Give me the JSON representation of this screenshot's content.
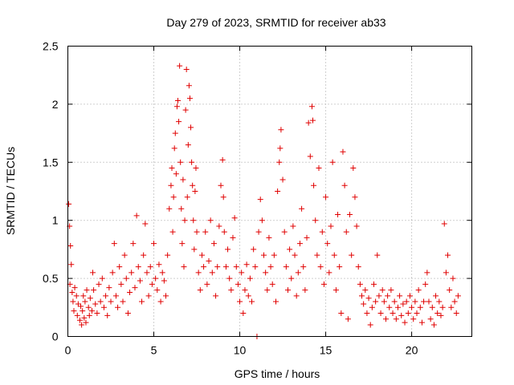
{
  "chart_data": {
    "type": "scatter",
    "title": "Day 279 of 2023, SRMTID for receiver ab33",
    "xlabel": "GPS time / hours",
    "ylabel": "SRMTID / TECUs",
    "xlim": [
      0,
      23.5
    ],
    "ylim": [
      0,
      2.5
    ],
    "xticks": [
      0,
      5,
      10,
      15,
      20
    ],
    "xtick_labels": [
      "0",
      "5",
      "10",
      "15",
      "20"
    ],
    "yticks": [
      0,
      0.5,
      1,
      1.5,
      2,
      2.5
    ],
    "ytick_labels": [
      "0",
      "0.5",
      "1",
      "1.5",
      "2",
      "2.5"
    ],
    "grid": true,
    "marker": "+",
    "color": "#e00000",
    "series": [
      {
        "name": "SRMTID",
        "points": [
          [
            0.05,
            1.14
          ],
          [
            0.1,
            0.95
          ],
          [
            0.15,
            0.78
          ],
          [
            0.2,
            0.62
          ],
          [
            0.12,
            0.45
          ],
          [
            0.25,
            0.38
          ],
          [
            0.3,
            0.3
          ],
          [
            0.35,
            0.22
          ],
          [
            0.4,
            0.42
          ],
          [
            0.5,
            0.35
          ],
          [
            0.55,
            0.18
          ],
          [
            0.6,
            0.28
          ],
          [
            0.7,
            0.14
          ],
          [
            0.75,
            0.26
          ],
          [
            0.8,
            0.1
          ],
          [
            0.85,
            0.22
          ],
          [
            0.9,
            0.35
          ],
          [
            0.95,
            0.16
          ],
          [
            1.0,
            0.3
          ],
          [
            1.05,
            0.12
          ],
          [
            1.1,
            0.4
          ],
          [
            1.2,
            0.25
          ],
          [
            1.25,
            0.18
          ],
          [
            1.3,
            0.33
          ],
          [
            1.4,
            0.22
          ],
          [
            1.45,
            0.55
          ],
          [
            1.5,
            0.4
          ],
          [
            1.6,
            0.28
          ],
          [
            1.7,
            0.2
          ],
          [
            1.8,
            0.45
          ],
          [
            1.9,
            0.3
          ],
          [
            2.0,
            0.5
          ],
          [
            2.1,
            0.25
          ],
          [
            2.2,
            0.35
          ],
          [
            2.3,
            0.18
          ],
          [
            2.4,
            0.42
          ],
          [
            2.5,
            0.3
          ],
          [
            2.6,
            0.55
          ],
          [
            2.7,
            0.8
          ],
          [
            2.8,
            0.35
          ],
          [
            2.9,
            0.25
          ],
          [
            3.0,
            0.6
          ],
          [
            3.1,
            0.45
          ],
          [
            3.2,
            0.3
          ],
          [
            3.3,
            0.7
          ],
          [
            3.4,
            0.5
          ],
          [
            3.5,
            0.2
          ],
          [
            3.6,
            0.38
          ],
          [
            3.7,
            0.55
          ],
          [
            3.8,
            0.8
          ],
          [
            3.9,
            0.42
          ],
          [
            4.0,
            1.04
          ],
          [
            4.1,
            0.6
          ],
          [
            4.2,
            0.48
          ],
          [
            4.3,
            0.3
          ],
          [
            4.4,
            0.7
          ],
          [
            4.5,
            0.97
          ],
          [
            4.6,
            0.55
          ],
          [
            4.7,
            0.35
          ],
          [
            4.8,
            0.6
          ],
          [
            4.9,
            0.45
          ],
          [
            5.0,
            0.8
          ],
          [
            5.1,
            0.5
          ],
          [
            5.2,
            0.4
          ],
          [
            5.3,
            0.62
          ],
          [
            5.4,
            0.3
          ],
          [
            5.5,
            0.55
          ],
          [
            5.6,
            0.48
          ],
          [
            5.7,
            0.35
          ],
          [
            5.8,
            0.7
          ],
          [
            5.9,
            1.1
          ],
          [
            6.0,
            1.3
          ],
          [
            6.05,
            1.45
          ],
          [
            6.1,
            0.9
          ],
          [
            6.15,
            1.2
          ],
          [
            6.2,
            1.62
          ],
          [
            6.25,
            1.75
          ],
          [
            6.3,
            1.4
          ],
          [
            6.35,
            1.98
          ],
          [
            6.4,
            2.03
          ],
          [
            6.45,
            1.85
          ],
          [
            6.5,
            2.33
          ],
          [
            6.55,
            1.5
          ],
          [
            6.6,
            1.1
          ],
          [
            6.65,
            0.8
          ],
          [
            6.7,
            1.35
          ],
          [
            6.75,
            0.6
          ],
          [
            6.8,
            1.0
          ],
          [
            6.85,
            1.95
          ],
          [
            6.9,
            2.3
          ],
          [
            6.95,
            1.2
          ],
          [
            7.0,
            1.65
          ],
          [
            7.05,
            2.16
          ],
          [
            7.1,
            2.05
          ],
          [
            7.15,
            1.8
          ],
          [
            7.2,
            1.5
          ],
          [
            7.25,
            1.3
          ],
          [
            7.3,
            1.0
          ],
          [
            7.35,
            0.75
          ],
          [
            7.4,
            1.25
          ],
          [
            7.45,
            1.45
          ],
          [
            7.5,
            0.9
          ],
          [
            7.6,
            0.55
          ],
          [
            7.7,
            0.4
          ],
          [
            7.8,
            0.7
          ],
          [
            7.9,
            0.6
          ],
          [
            8.0,
            0.9
          ],
          [
            8.1,
            0.45
          ],
          [
            8.2,
            0.65
          ],
          [
            8.3,
            1.0
          ],
          [
            8.4,
            0.55
          ],
          [
            8.5,
            0.8
          ],
          [
            8.6,
            0.35
          ],
          [
            8.7,
            0.6
          ],
          [
            8.8,
            0.95
          ],
          [
            8.9,
            1.3
          ],
          [
            9.0,
            1.52
          ],
          [
            9.05,
            1.2
          ],
          [
            9.1,
            0.9
          ],
          [
            9.2,
            0.6
          ],
          [
            9.3,
            0.75
          ],
          [
            9.4,
            0.5
          ],
          [
            9.5,
            0.4
          ],
          [
            9.6,
            0.85
          ],
          [
            9.7,
            1.02
          ],
          [
            9.8,
            0.6
          ],
          [
            9.9,
            0.45
          ],
          [
            10.0,
            0.3
          ],
          [
            10.1,
            0.55
          ],
          [
            10.2,
            0.2
          ],
          [
            10.3,
            0.4
          ],
          [
            10.4,
            0.62
          ],
          [
            10.5,
            0.35
          ],
          [
            10.6,
            0.5
          ],
          [
            10.7,
            0.3
          ],
          [
            10.8,
            0.75
          ],
          [
            10.9,
            0.6
          ],
          [
            11.0,
            0.0
          ],
          [
            11.1,
            0.9
          ],
          [
            11.2,
            1.18
          ],
          [
            11.3,
            1.0
          ],
          [
            11.4,
            0.7
          ],
          [
            11.5,
            0.55
          ],
          [
            11.6,
            0.4
          ],
          [
            11.7,
            0.85
          ],
          [
            11.8,
            0.6
          ],
          [
            11.9,
            0.45
          ],
          [
            12.0,
            0.7
          ],
          [
            12.1,
            0.3
          ],
          [
            12.2,
            1.25
          ],
          [
            12.3,
            1.5
          ],
          [
            12.35,
            1.62
          ],
          [
            12.4,
            1.78
          ],
          [
            12.5,
            1.35
          ],
          [
            12.6,
            0.9
          ],
          [
            12.7,
            0.6
          ],
          [
            12.8,
            0.4
          ],
          [
            12.9,
            0.75
          ],
          [
            13.0,
            0.5
          ],
          [
            13.1,
            0.95
          ],
          [
            13.2,
            0.7
          ],
          [
            13.3,
            0.35
          ],
          [
            13.4,
            0.55
          ],
          [
            13.5,
            0.8
          ],
          [
            13.6,
            1.1
          ],
          [
            13.7,
            0.6
          ],
          [
            13.8,
            0.4
          ],
          [
            13.9,
            0.85
          ],
          [
            14.0,
            1.84
          ],
          [
            14.1,
            1.55
          ],
          [
            14.2,
            1.98
          ],
          [
            14.25,
            1.86
          ],
          [
            14.3,
            1.3
          ],
          [
            14.4,
            1.0
          ],
          [
            14.5,
            0.7
          ],
          [
            14.6,
            1.45
          ],
          [
            14.7,
            0.6
          ],
          [
            14.8,
            0.9
          ],
          [
            14.9,
            0.45
          ],
          [
            15.0,
            1.2
          ],
          [
            15.1,
            0.8
          ],
          [
            15.2,
            0.55
          ],
          [
            15.3,
            0.95
          ],
          [
            15.4,
            1.5
          ],
          [
            15.5,
            0.7
          ],
          [
            15.6,
            0.4
          ],
          [
            15.7,
            1.05
          ],
          [
            15.8,
            0.6
          ],
          [
            15.9,
            0.2
          ],
          [
            16.0,
            1.59
          ],
          [
            16.1,
            1.3
          ],
          [
            16.2,
            0.9
          ],
          [
            16.3,
            0.15
          ],
          [
            16.4,
            1.05
          ],
          [
            16.5,
            0.7
          ],
          [
            16.6,
            1.45
          ],
          [
            16.7,
            1.2
          ],
          [
            16.8,
            0.95
          ],
          [
            16.9,
            0.6
          ],
          [
            17.0,
            0.45
          ],
          [
            17.1,
            0.35
          ],
          [
            17.2,
            0.28
          ],
          [
            17.3,
            0.4
          ],
          [
            17.4,
            0.2
          ],
          [
            17.5,
            0.33
          ],
          [
            17.6,
            0.1
          ],
          [
            17.7,
            0.25
          ],
          [
            17.8,
            0.45
          ],
          [
            17.9,
            0.3
          ],
          [
            18.0,
            0.7
          ],
          [
            18.1,
            0.35
          ],
          [
            18.2,
            0.2
          ],
          [
            18.3,
            0.4
          ],
          [
            18.4,
            0.3
          ],
          [
            18.5,
            0.15
          ],
          [
            18.6,
            0.35
          ],
          [
            18.7,
            0.25
          ],
          [
            18.8,
            0.4
          ],
          [
            18.9,
            0.2
          ],
          [
            19.0,
            0.3
          ],
          [
            19.1,
            0.15
          ],
          [
            19.2,
            0.25
          ],
          [
            19.3,
            0.35
          ],
          [
            19.4,
            0.18
          ],
          [
            19.5,
            0.28
          ],
          [
            19.6,
            0.12
          ],
          [
            19.7,
            0.3
          ],
          [
            19.8,
            0.2
          ],
          [
            19.9,
            0.35
          ],
          [
            20.0,
            0.25
          ],
          [
            20.1,
            0.15
          ],
          [
            20.2,
            0.3
          ],
          [
            20.3,
            0.2
          ],
          [
            20.4,
            0.4
          ],
          [
            20.5,
            0.25
          ],
          [
            20.6,
            0.12
          ],
          [
            20.7,
            0.3
          ],
          [
            20.8,
            0.45
          ],
          [
            20.9,
            0.55
          ],
          [
            21.0,
            0.3
          ],
          [
            21.1,
            0.15
          ],
          [
            21.2,
            0.25
          ],
          [
            21.3,
            0.1
          ],
          [
            21.4,
            0.35
          ],
          [
            21.5,
            0.2
          ],
          [
            21.6,
            0.3
          ],
          [
            21.7,
            0.18
          ],
          [
            21.8,
            0.25
          ],
          [
            21.9,
            0.97
          ],
          [
            22.0,
            0.55
          ],
          [
            22.1,
            0.7
          ],
          [
            22.2,
            0.4
          ],
          [
            22.3,
            0.25
          ],
          [
            22.4,
            0.5
          ],
          [
            22.5,
            0.3
          ],
          [
            22.6,
            0.2
          ],
          [
            22.7,
            0.35
          ]
        ]
      }
    ]
  }
}
